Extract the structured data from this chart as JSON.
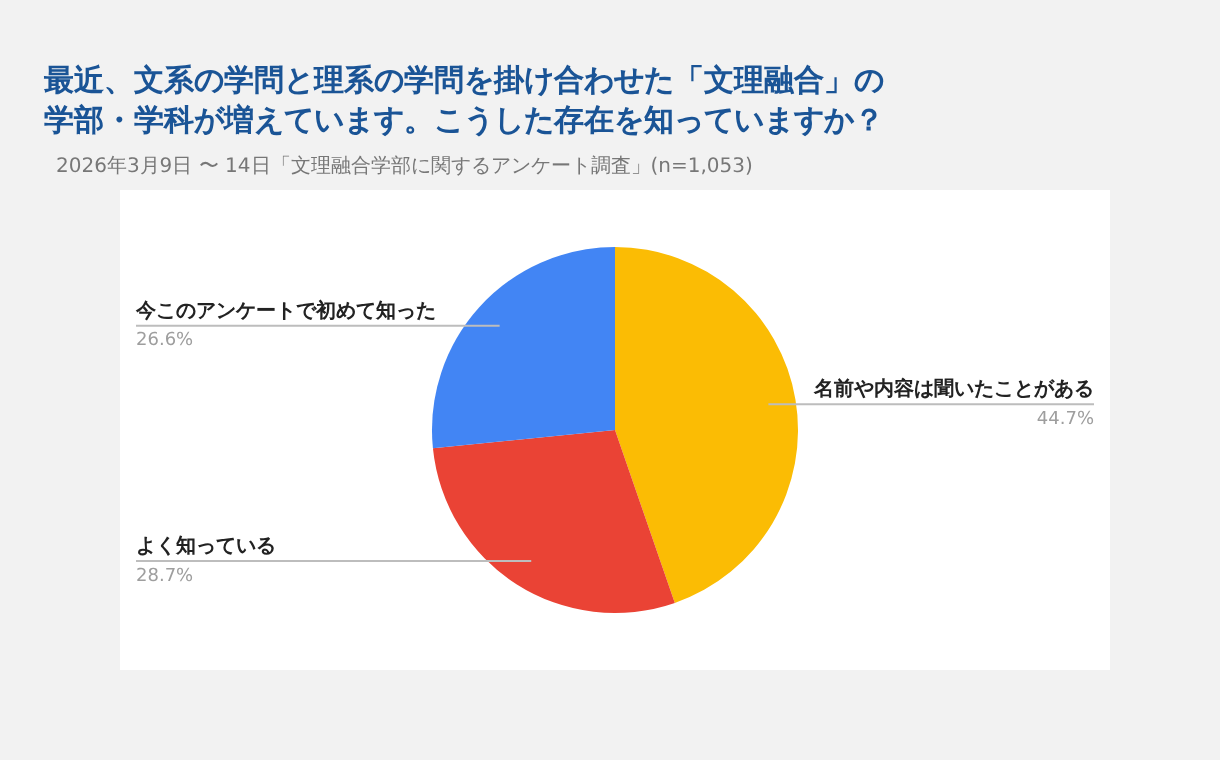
{
  "chart_data": {
    "type": "pie",
    "title": "最近、文系の学問と理系の学問を掛け合わせた「文理融合」の学部・学科が増えています。こうした存在を知っていますか？",
    "subtitle": "2026年3月9日 〜 14日「文理融合学部に関するアンケート調査」(n=1,053)",
    "categories": [
      "名前や内容は聞いたことがある",
      "よく知っている",
      "今このアンケートで初めて知った"
    ],
    "values": [
      44.7,
      28.7,
      26.6
    ],
    "colors": [
      "#fbbc04",
      "#ea4335",
      "#4285f4"
    ],
    "value_labels": [
      "44.7%",
      "28.7%",
      "26.6%"
    ],
    "legend": false
  }
}
